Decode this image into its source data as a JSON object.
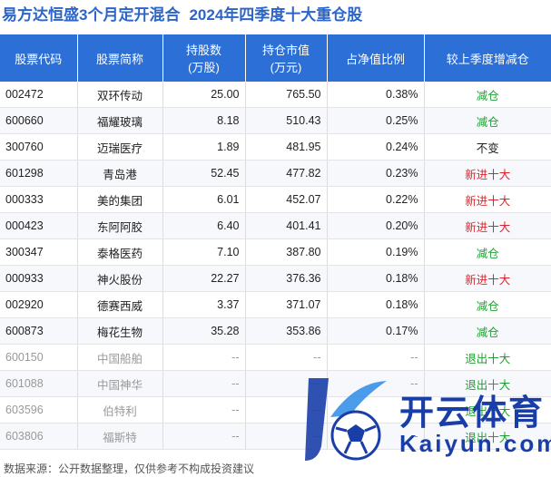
{
  "title": {
    "fund": "易方达恒盛3个月定开混合",
    "subtitle": "2024年四季度十大重仓股"
  },
  "table": {
    "headers": [
      "股票代码",
      "股票简称",
      "持股数\n(万股)",
      "持仓市值\n(万元)",
      "占净值比例",
      "较上季度增减仓"
    ],
    "rows": [
      {
        "code": "002472",
        "name": "双环传动",
        "shares": "25.00",
        "value": "765.50",
        "ratio": "0.38%",
        "change": "减仓",
        "change_color": "#21a033",
        "dim": false
      },
      {
        "code": "600660",
        "name": "福耀玻璃",
        "shares": "8.18",
        "value": "510.43",
        "ratio": "0.25%",
        "change": "减仓",
        "change_color": "#21a033",
        "dim": false
      },
      {
        "code": "300760",
        "name": "迈瑞医疗",
        "shares": "1.89",
        "value": "481.95",
        "ratio": "0.24%",
        "change": "不变",
        "change_color": "#222222",
        "dim": false
      },
      {
        "code": "601298",
        "name": "青岛港",
        "shares": "52.45",
        "value": "477.82",
        "ratio": "0.23%",
        "change": "新进十大",
        "change_color": "#e0242a",
        "dim": false
      },
      {
        "code": "000333",
        "name": "美的集团",
        "shares": "6.01",
        "value": "452.07",
        "ratio": "0.22%",
        "change": "新进十大",
        "change_color": "#e0242a",
        "dim": false
      },
      {
        "code": "000423",
        "name": "东阿阿胶",
        "shares": "6.40",
        "value": "401.41",
        "ratio": "0.20%",
        "change": "新进十大",
        "change_color": "#e0242a",
        "dim": false
      },
      {
        "code": "300347",
        "name": "泰格医药",
        "shares": "7.10",
        "value": "387.80",
        "ratio": "0.19%",
        "change": "减仓",
        "change_color": "#21a033",
        "dim": false
      },
      {
        "code": "000933",
        "name": "神火股份",
        "shares": "22.27",
        "value": "376.36",
        "ratio": "0.18%",
        "change": "新进十大",
        "change_color": "#e0242a",
        "dim": false
      },
      {
        "code": "002920",
        "name": "德赛西威",
        "shares": "3.37",
        "value": "371.07",
        "ratio": "0.18%",
        "change": "减仓",
        "change_color": "#21a033",
        "dim": false
      },
      {
        "code": "600873",
        "name": "梅花生物",
        "shares": "35.28",
        "value": "353.86",
        "ratio": "0.17%",
        "change": "减仓",
        "change_color": "#21a033",
        "dim": false
      },
      {
        "code": "600150",
        "name": "中国船舶",
        "shares": "--",
        "value": "--",
        "ratio": "--",
        "change": "退出十大",
        "change_color": "#21a033",
        "dim": true
      },
      {
        "code": "601088",
        "name": "中国神华",
        "shares": "--",
        "value": "--",
        "ratio": "--",
        "change": "退出十大",
        "change_color": "#21a033",
        "dim": true
      },
      {
        "code": "603596",
        "name": "伯特利",
        "shares": "--",
        "value": "--",
        "ratio": "--",
        "change": "退出十大",
        "change_color": "#21a033",
        "dim": true
      },
      {
        "code": "603806",
        "name": "福斯特",
        "shares": "--",
        "value": "--",
        "ratio": "--",
        "change": "退出十大",
        "change_color": "#21a033",
        "dim": true
      }
    ]
  },
  "footer": "数据来源：公开数据整理，仅供参考不构成投资建议",
  "watermark": {
    "brand_cn": "开云体育",
    "brand_en": "Kaiyun.com",
    "icon": "soccer-ball-k-logo-icon"
  },
  "colors": {
    "header_bg": "#2c6fd6",
    "title": "#2c65c8",
    "increase": "#e0242a",
    "decrease": "#21a033"
  }
}
